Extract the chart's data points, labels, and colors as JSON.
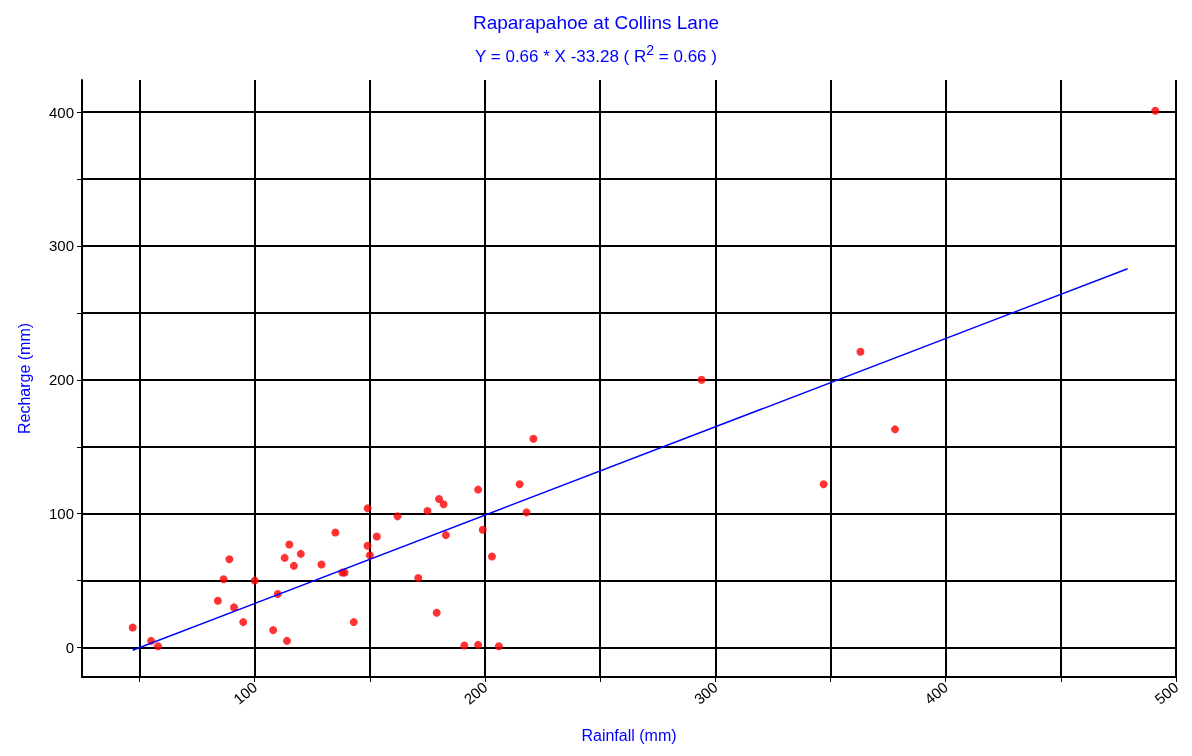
{
  "chart_data": {
    "type": "scatter",
    "title": "Raparapahoe at Collins Lane",
    "subtitle": "Y =  0.66 * X -33.28 ( R$^{2}$ = 0.66 )",
    "xlabel": "Rainfall (mm)",
    "ylabel": "Recharge (mm)",
    "xlim": [
      25,
      500
    ],
    "xticks": [
      {
        "value": 50,
        "label": null
      },
      100,
      {
        "value": 150,
        "label": null
      },
      200,
      {
        "value": 250,
        "label": null
      },
      300,
      {
        "value": 350,
        "label": null
      },
      400,
      {
        "value": 450,
        "label": null
      },
      500
    ],
    "ylim": [
      -22,
      424
    ],
    "yticks": [
      0,
      {
        "value": 50,
        "label": null
      },
      100,
      {
        "value": 150,
        "label": null
      },
      200,
      {
        "value": 250,
        "label": null
      },
      300,
      {
        "value": 350,
        "label": null
      },
      400
    ],
    "grid": true,
    "marker": "circle",
    "series": [
      {
        "type": "scatter",
        "color": "#ff0000",
        "x": [
          47,
          55,
          58,
          84,
          86.5,
          89,
          91,
          95,
          100,
          108,
          110,
          114,
          113,
          115,
          117,
          120,
          129,
          135,
          138,
          139,
          143,
          149,
          149,
          150,
          153,
          162,
          175,
          180,
          182,
          183,
          171,
          179,
          191,
          197,
          206,
          197,
          199,
          203,
          215,
          218,
          221,
          294,
          347,
          363,
          378,
          491
        ],
        "values": [
          15,
          5,
          1,
          35,
          51,
          66,
          30,
          19,
          50,
          13,
          40,
          5,
          67,
          77,
          61,
          70,
          62,
          86,
          56,
          56,
          19,
          104,
          76,
          69,
          83,
          98,
          102,
          111,
          107,
          84,
          52,
          26,
          1.5,
          2,
          1,
          118,
          88,
          68,
          122,
          101,
          156,
          200,
          122,
          221,
          163,
          401
        ]
      },
      {
        "type": "line",
        "color": "#0000ff",
        "marker": "none",
        "x": [
          47,
          479
        ],
        "values": [
          -2,
          283
        ]
      }
    ]
  }
}
